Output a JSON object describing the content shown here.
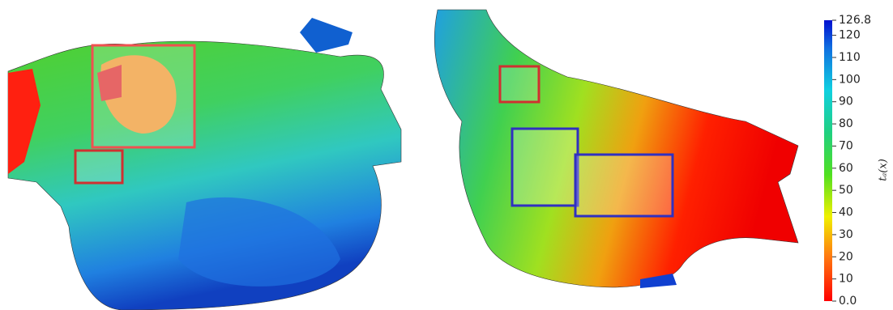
{
  "colorbar": {
    "label": "tₐ(x)",
    "range": [
      0,
      126.8
    ],
    "ticks": [
      {
        "value": 0,
        "label": "0.0"
      },
      10,
      20,
      30,
      40,
      50,
      60,
      70,
      80,
      90,
      100,
      110,
      120,
      126.8
    ]
  }
}
